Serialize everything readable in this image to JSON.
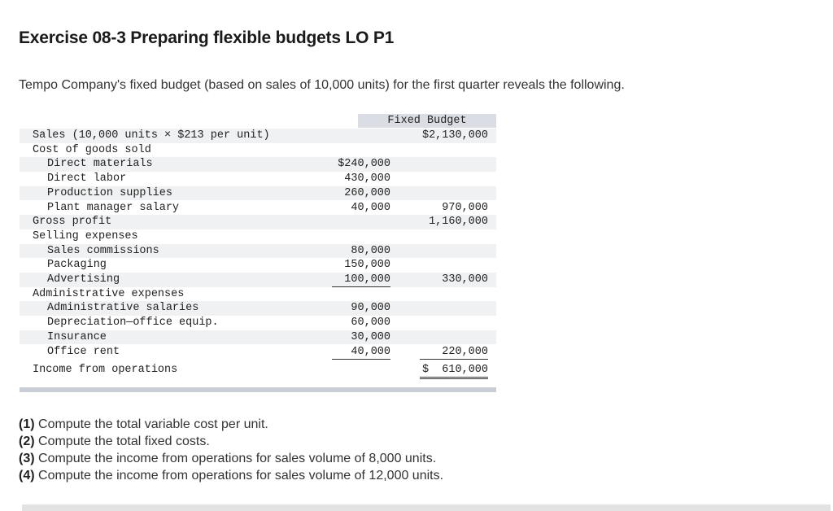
{
  "title": "Exercise 08-3 Preparing flexible budgets LO P1",
  "intro": "Tempo Company's fixed budget (based on sales of 10,000 units) for the first quarter reveals the following.",
  "budget": {
    "header": "Fixed Budget",
    "rows": [
      {
        "label": "Sales (10,000 units × $213 per unit)",
        "indent": 0,
        "c1": "",
        "c2": "$2,130,000",
        "shade": true,
        "u1": "",
        "u2": ""
      },
      {
        "label": "Cost of goods sold",
        "indent": 0,
        "c1": "",
        "c2": "",
        "shade": false,
        "u1": "",
        "u2": ""
      },
      {
        "label": "Direct materials",
        "indent": 1,
        "c1": "$240,000",
        "c2": "",
        "shade": true,
        "u1": "",
        "u2": ""
      },
      {
        "label": "Direct labor",
        "indent": 1,
        "c1": "430,000",
        "c2": "",
        "shade": false,
        "u1": "",
        "u2": ""
      },
      {
        "label": "Production supplies",
        "indent": 1,
        "c1": "260,000",
        "c2": "",
        "shade": true,
        "u1": "",
        "u2": ""
      },
      {
        "label": "Plant manager salary",
        "indent": 1,
        "c1": "40,000",
        "c2": "970,000",
        "shade": false,
        "u1": "single",
        "u2": "single"
      },
      {
        "label": "Gross profit",
        "indent": 0,
        "c1": "",
        "c2": "1,160,000",
        "shade": true,
        "u1": "",
        "u2": ""
      },
      {
        "label": "Selling expenses",
        "indent": 0,
        "c1": "",
        "c2": "",
        "shade": false,
        "u1": "",
        "u2": ""
      },
      {
        "label": "Sales commissions",
        "indent": 1,
        "c1": "80,000",
        "c2": "",
        "shade": true,
        "u1": "",
        "u2": ""
      },
      {
        "label": "Packaging",
        "indent": 1,
        "c1": "150,000",
        "c2": "",
        "shade": false,
        "u1": "",
        "u2": ""
      },
      {
        "label": "Advertising",
        "indent": 1,
        "c1": "100,000",
        "c2": "330,000",
        "shade": true,
        "u1": "single",
        "u2": ""
      },
      {
        "label": "Administrative expenses",
        "indent": 0,
        "c1": "",
        "c2": "",
        "shade": false,
        "u1": "",
        "u2": ""
      },
      {
        "label": "Administrative salaries",
        "indent": 1,
        "c1": "90,000",
        "c2": "",
        "shade": true,
        "u1": "",
        "u2": ""
      },
      {
        "label": "Depreciation—office equip.",
        "indent": 1,
        "c1": "60,000",
        "c2": "",
        "shade": false,
        "u1": "",
        "u2": ""
      },
      {
        "label": "Insurance",
        "indent": 1,
        "c1": "30,000",
        "c2": "",
        "shade": true,
        "u1": "",
        "u2": ""
      },
      {
        "label": "Office rent",
        "indent": 1,
        "c1": "40,000",
        "c2": "220,000",
        "shade": false,
        "u1": "single",
        "u2": "single"
      },
      {
        "label": "Income from operations",
        "indent": 0,
        "c1": "",
        "c2": "$  610,000",
        "shade": false,
        "u1": "",
        "u2": "double"
      }
    ]
  },
  "questions": [
    {
      "num": "(1)",
      "text": " Compute the total variable cost per unit."
    },
    {
      "num": "(2)",
      "text": " Compute the total fixed costs."
    },
    {
      "num": "(3)",
      "text": " Compute the income from operations for sales volume of 8,000 units."
    },
    {
      "num": "(4)",
      "text": " Compute the income from operations for sales volume of 12,000 units."
    }
  ]
}
